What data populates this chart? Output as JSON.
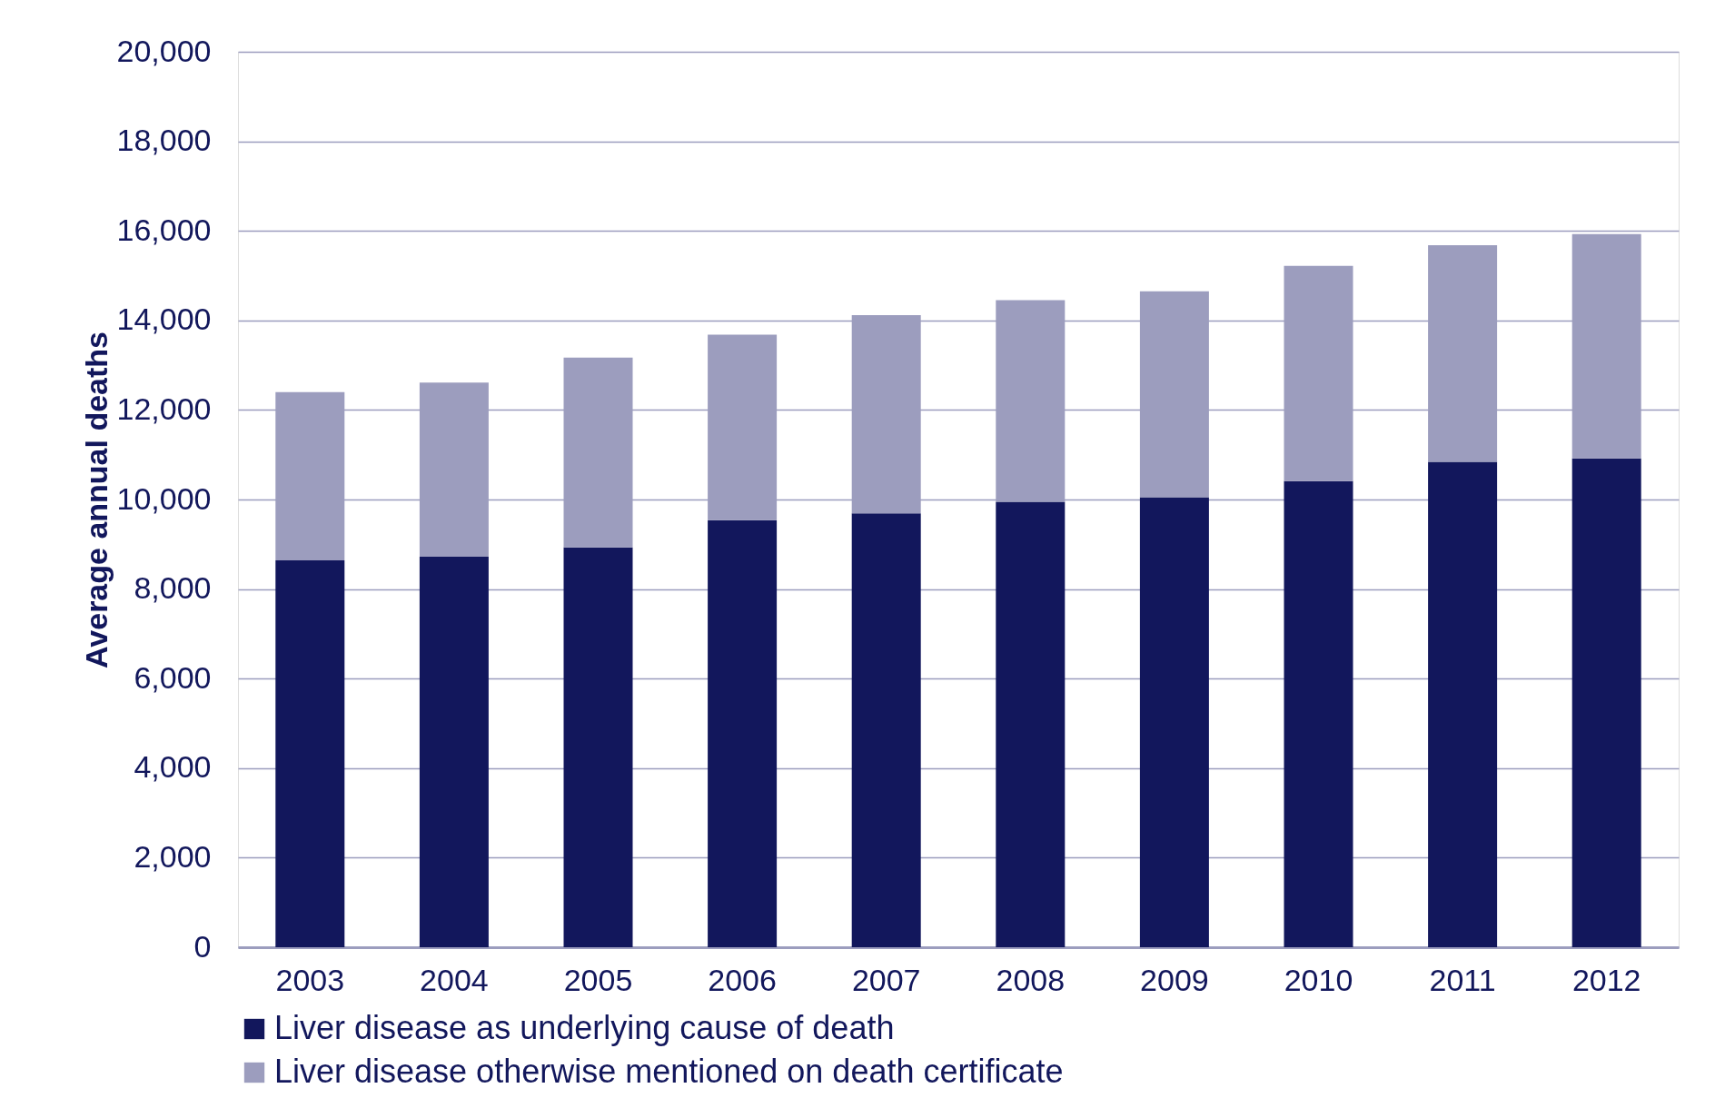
{
  "chart_data": {
    "type": "bar",
    "stacked": true,
    "ylabel": "Average annual deaths",
    "categories": [
      "2003",
      "2004",
      "2005",
      "2006",
      "2007",
      "2008",
      "2009",
      "2010",
      "2011",
      "2012"
    ],
    "series": [
      {
        "name": "Liver disease as underlying cause of death",
        "color": "#12175c",
        "values": [
          8640,
          8720,
          8930,
          9540,
          9690,
          9950,
          10050,
          10410,
          10840,
          10920
        ]
      },
      {
        "name": "Liver disease otherwise mentioned on death certificate",
        "color": "#9c9dbe",
        "values": [
          3760,
          3890,
          4240,
          4140,
          4430,
          4500,
          4600,
          4810,
          4840,
          5010
        ]
      }
    ],
    "ylim": [
      0,
      20000
    ],
    "yticks": [
      0,
      {
        "value": 2000,
        "label": "2,000"
      },
      {
        "value": 4000,
        "label": "4,000"
      },
      {
        "value": 6000,
        "label": "6,000"
      },
      {
        "value": 8000,
        "label": "8,000"
      },
      {
        "value": 10000,
        "label": "10,000"
      },
      {
        "value": 12000,
        "label": "12,000"
      },
      {
        "value": 14000,
        "label": "14,000"
      },
      {
        "value": 16000,
        "label": "16,000"
      },
      {
        "value": 18000,
        "label": "18,000"
      },
      {
        "value": 20000,
        "label": "20,000"
      }
    ],
    "grid": "y",
    "legend": "bottom"
  }
}
